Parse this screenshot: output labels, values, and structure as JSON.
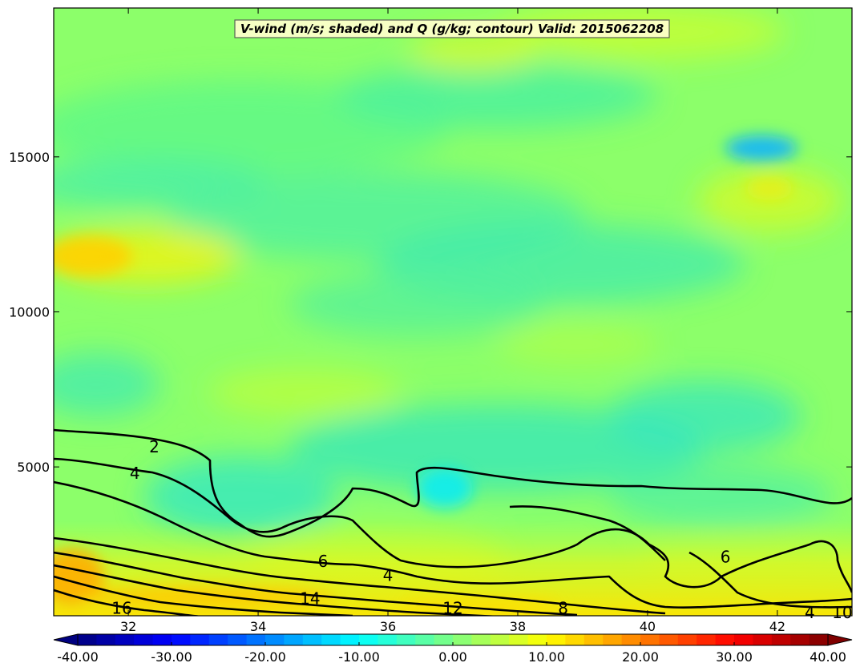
{
  "chart_data": {
    "type": "heatmap",
    "title": "V-wind (m/s; shaded) and Q (g/kg; contour) Valid: 2015062208",
    "xlabel": "",
    "ylabel": "",
    "xlim": [
      30.85,
      43.15
    ],
    "ylim": [
      200,
      19800
    ],
    "x_ticks": [
      32,
      34,
      36,
      38,
      40,
      42
    ],
    "y_ticks": [
      5000,
      10000,
      15000
    ],
    "grid": false,
    "shading_field": "V-wind (m/s)",
    "contour_field": "Q (g/kg)",
    "contour_labels": [
      {
        "text": "2",
        "x": 32.4,
        "y": 5650
      },
      {
        "text": "4",
        "x": 32.1,
        "y": 4800
      },
      {
        "text": "6",
        "x": 35.0,
        "y": 1950
      },
      {
        "text": "4",
        "x": 36.0,
        "y": 1500
      },
      {
        "text": "14",
        "x": 34.8,
        "y": 750
      },
      {
        "text": "16",
        "x": 31.9,
        "y": 450
      },
      {
        "text": "12",
        "x": 37.0,
        "y": 450
      },
      {
        "text": "8",
        "x": 38.7,
        "y": 450
      },
      {
        "text": "6",
        "x": 41.2,
        "y": 2100
      },
      {
        "text": "4",
        "x": 42.5,
        "y": 300
      },
      {
        "text": "10",
        "x": 43.0,
        "y": 300
      }
    ],
    "colorbar": {
      "min": -40,
      "max": 40,
      "extend": "both",
      "tick_values": [
        -40,
        -30,
        -20,
        -10,
        0,
        10,
        20,
        30,
        40
      ],
      "tick_labels": [
        "-40.00",
        "-30.00",
        "-20.00",
        "-10.00",
        "0.00",
        "10.00",
        "20.00",
        "30.00",
        "40.00"
      ],
      "colormap": "jet"
    }
  }
}
